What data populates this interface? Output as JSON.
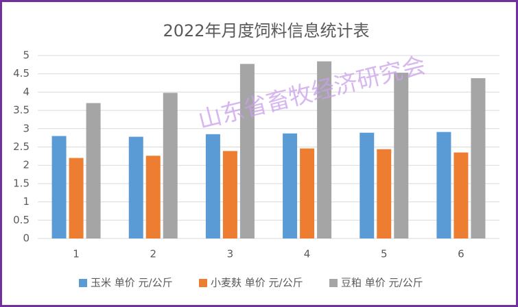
{
  "chart_data": {
    "type": "bar",
    "title": "2022年月度饲料信息统计表",
    "watermark": "山东省畜牧经济研究会",
    "categories": [
      "1",
      "2",
      "3",
      "4",
      "5",
      "6"
    ],
    "series": [
      {
        "name": "玉米 单价 元/公斤",
        "color": "#5b9bd5",
        "values": [
          2.8,
          2.78,
          2.85,
          2.87,
          2.89,
          2.91
        ]
      },
      {
        "name": "小麦麸 单价 元/公斤",
        "color": "#ed7d31",
        "values": [
          2.2,
          2.26,
          2.39,
          2.46,
          2.44,
          2.35
        ]
      },
      {
        "name": "豆粕 单价 元/公斤",
        "color": "#a5a5a5",
        "values": [
          3.7,
          3.98,
          4.77,
          4.84,
          4.53,
          4.38
        ]
      }
    ],
    "ylim": [
      0,
      5
    ],
    "yticks": [
      0,
      0.5,
      1,
      1.5,
      2,
      2.5,
      3,
      3.5,
      4,
      4.5,
      5
    ],
    "grid": true,
    "legend": "bottom"
  }
}
